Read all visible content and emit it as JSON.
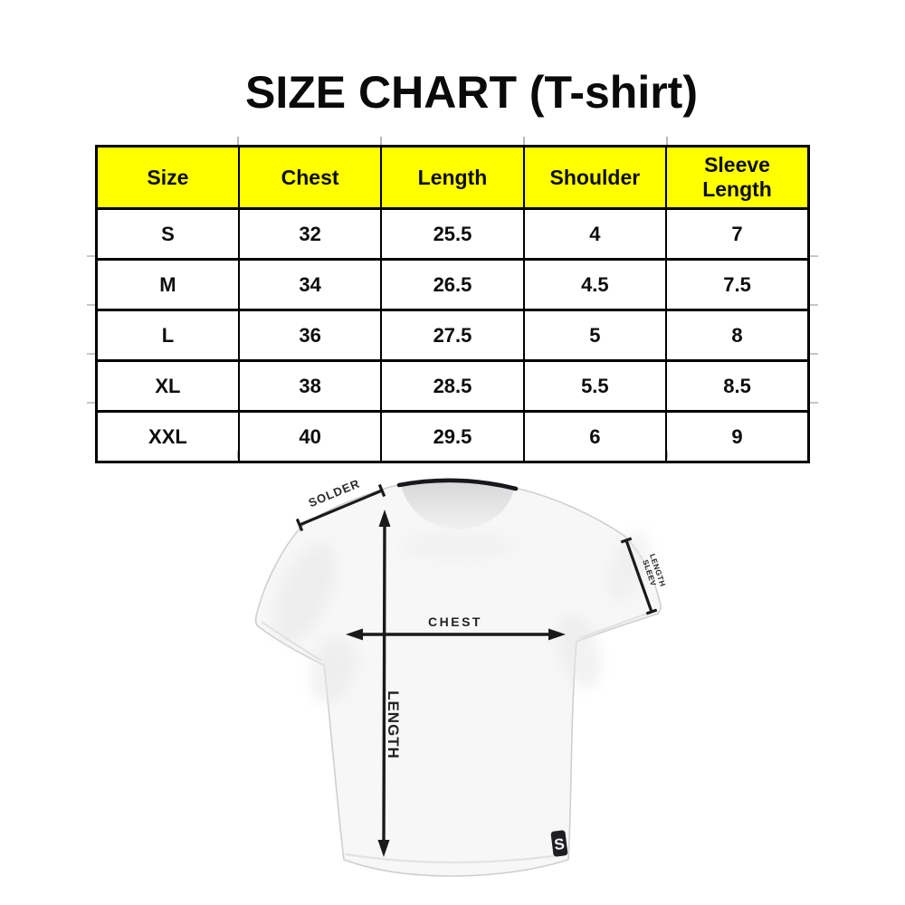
{
  "title": "SIZE CHART (T-shirt)",
  "table": {
    "headers": [
      "Size",
      "Chest",
      "Length",
      "Shoulder",
      "Sleeve Length"
    ],
    "rows": [
      [
        "S",
        "32",
        "25.5",
        "4",
        "7"
      ],
      [
        "M",
        "34",
        "26.5",
        "4.5",
        "7.5"
      ],
      [
        "L",
        "36",
        "27.5",
        "5",
        "8"
      ],
      [
        "XL",
        "38",
        "28.5",
        "5.5",
        "8.5"
      ],
      [
        "XXL",
        "40",
        "29.5",
        "6",
        "9"
      ]
    ],
    "header_bg": "#ffff00",
    "border_color": "#000000"
  },
  "diagram": {
    "shoulder_label": "SOLDER",
    "chest_label": "CHEST",
    "length_label": "LENGTH",
    "sleeve_label_line1": "SLEEV",
    "sleeve_label_line2": "LENGTH",
    "brand_tag_letter": "S",
    "annotation_color": "#1a1a1a",
    "collar_color": "#17171c",
    "shirt_fill": "#f7f7f7"
  }
}
